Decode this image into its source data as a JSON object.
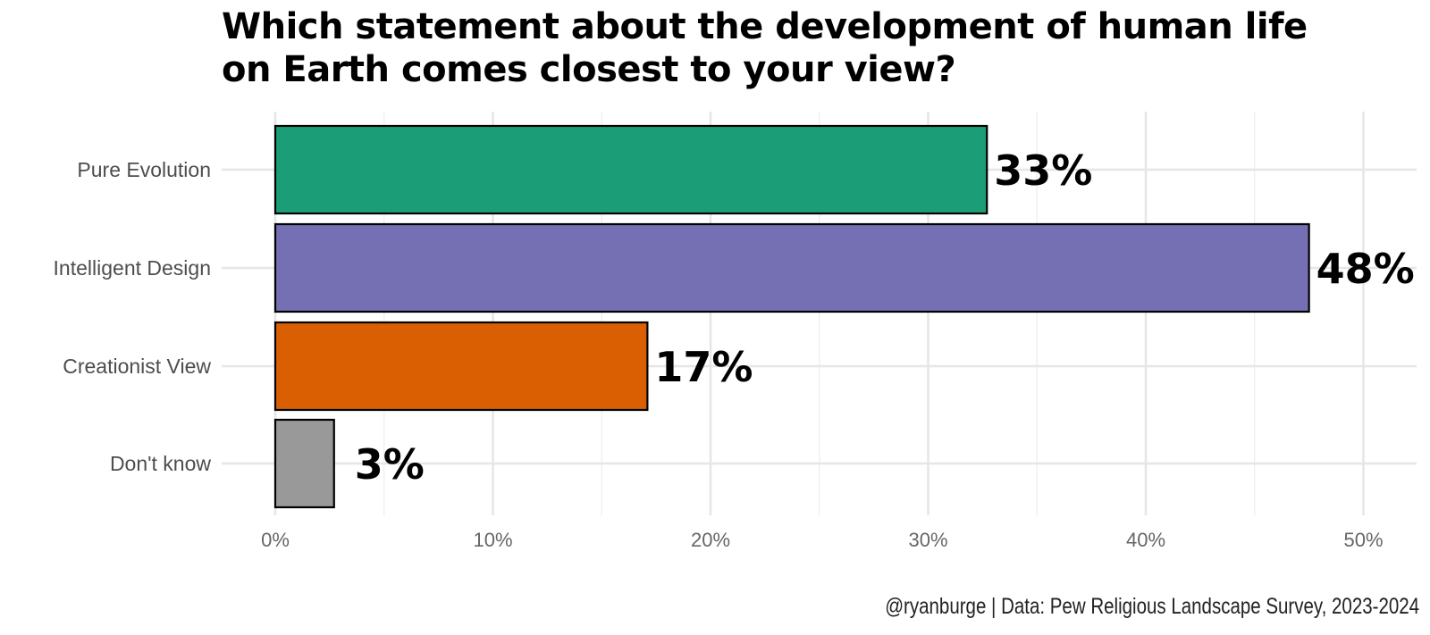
{
  "chart_data": {
    "type": "bar",
    "orientation": "horizontal",
    "title": "Which statement about the development of human life on Earth comes closest to your view?",
    "categories": [
      "Pure Evolution",
      "Intelligent Design",
      "Creationist View",
      "Don't know"
    ],
    "values": [
      32.7,
      47.5,
      17.1,
      2.7
    ],
    "value_labels": [
      "33%",
      "48%",
      "17%",
      "3%"
    ],
    "colors": [
      "#1b9e77",
      "#7570b3",
      "#d95f02",
      "#999999"
    ],
    "xlim": [
      0,
      52
    ],
    "x_ticks": [
      0,
      10,
      20,
      30,
      40,
      50
    ],
    "x_tick_labels": [
      "0%",
      "10%",
      "20%",
      "30%",
      "40%",
      "50%"
    ],
    "xlabel": "",
    "ylabel": "",
    "grid": true,
    "legend": "none",
    "caption": "@ryanburge | Data: Pew Religious Landscape Survey, 2023-2024"
  }
}
